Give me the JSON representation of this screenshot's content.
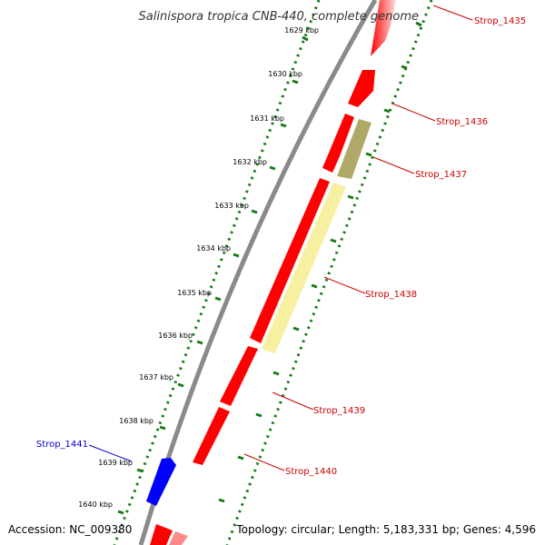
{
  "title": "Salinispora tropica CNB-440, complete genome",
  "footer": {
    "accession": "Accession: NC_009380",
    "summary": "Topology: circular; Length: 5,183,331 bp; Genes: 4,596"
  },
  "colors": {
    "backbone": "#888888",
    "forward_gene": "#ff0000",
    "reverse_gene": "#0000ff",
    "ticks": "#1a7a1a",
    "label_red": "#cc0000",
    "label_blue": "#0000cc",
    "pseudo_dark": "#b0a868",
    "pseudo_light": "#f4f0a0"
  },
  "kbp_ticks": [
    "1629 kbp",
    "1630 kbp",
    "1631 kbp",
    "1632 kbp",
    "1633 kbp",
    "1634 kbp",
    "1635 kbp",
    "1636 kbp",
    "1637 kbp",
    "1638 kbp",
    "1639 kbp",
    "1640 kbp"
  ],
  "gene_labels": [
    {
      "name": "Strop_1435",
      "color": "red"
    },
    {
      "name": "Strop_1436",
      "color": "red"
    },
    {
      "name": "Strop_1437",
      "color": "red"
    },
    {
      "name": "Strop_1438",
      "color": "red"
    },
    {
      "name": "Strop_1439",
      "color": "red"
    },
    {
      "name": "Strop_1440",
      "color": "red"
    },
    {
      "name": "Strop_1441",
      "color": "blue"
    }
  ]
}
